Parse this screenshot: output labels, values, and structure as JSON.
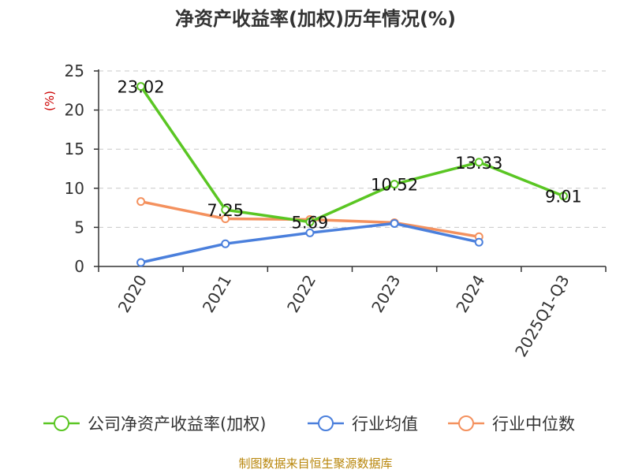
{
  "chart_data": {
    "type": "line",
    "title": "净资产收益率(加权)历年情况(%)",
    "ylabel": "(%)",
    "xlabel": "",
    "categories": [
      "2020",
      "2021",
      "2022",
      "2023",
      "2024",
      "2025Q1-Q3"
    ],
    "ylim": [
      0,
      25
    ],
    "yticks": [
      0,
      5,
      10,
      15,
      20,
      25
    ],
    "grid": "horizontal-dashed",
    "legend_position": "bottom",
    "series": [
      {
        "name": "公司净资产收益率(加权)",
        "color": "#5ac623",
        "values": [
          23.02,
          7.25,
          5.69,
          10.52,
          13.33,
          9.01
        ],
        "labels": [
          "23.02",
          "7.25",
          "5.69",
          "10.52",
          "13.33",
          "9.01"
        ]
      },
      {
        "name": "行业均值",
        "color": "#4a7fdc",
        "values": [
          0.5,
          2.9,
          4.3,
          5.5,
          3.1,
          null
        ]
      },
      {
        "name": "行业中位数",
        "color": "#f4915e",
        "values": [
          8.3,
          6.1,
          6.0,
          5.6,
          3.8,
          null
        ]
      }
    ],
    "source": "制图数据来自恒生聚源数据库"
  }
}
